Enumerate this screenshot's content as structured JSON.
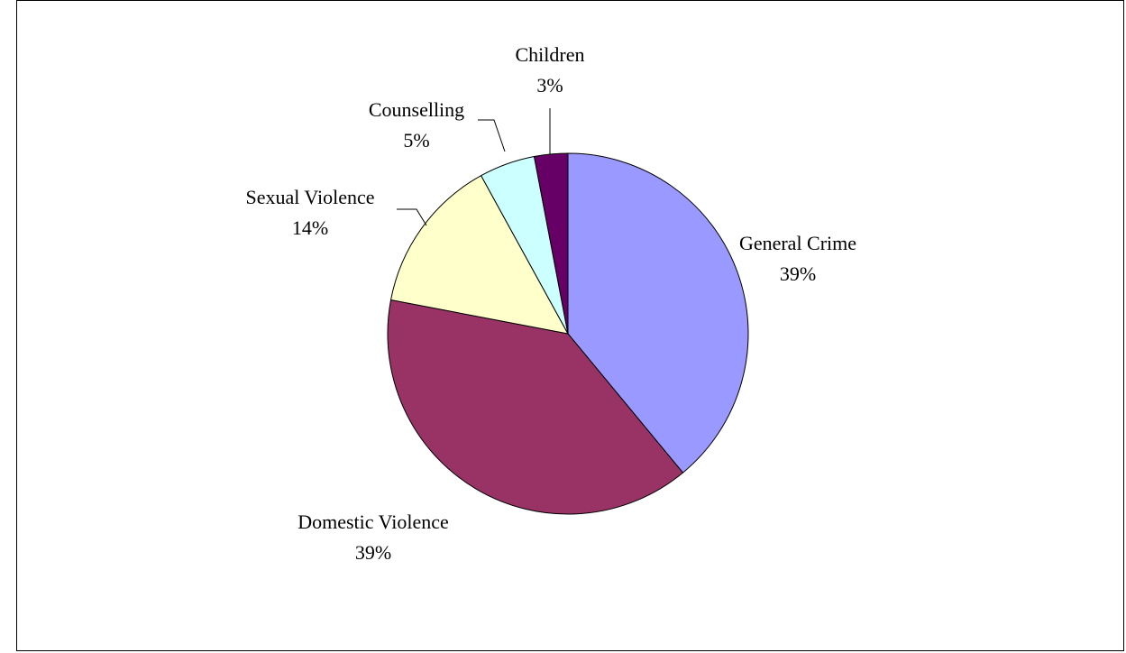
{
  "chart_data": {
    "type": "pie",
    "title": "",
    "slices": [
      {
        "label": "General Crime",
        "value": 39,
        "pct_label": "39%",
        "color": "#9999FF"
      },
      {
        "label": "Domestic Violence",
        "value": 39,
        "pct_label": "39%",
        "color": "#993366"
      },
      {
        "label": "Sexual Violence",
        "value": 14,
        "pct_label": "14%",
        "color": "#FFFFCC"
      },
      {
        "label": "Counselling",
        "value": 5,
        "pct_label": "5%",
        "color": "#CCFFFF"
      },
      {
        "label": "Children",
        "value": 3,
        "pct_label": "3%",
        "color": "#660066"
      }
    ],
    "start_position": "12 o'clock",
    "direction": "clockwise",
    "legend": "none",
    "data_labels": "outside with leader lines"
  }
}
